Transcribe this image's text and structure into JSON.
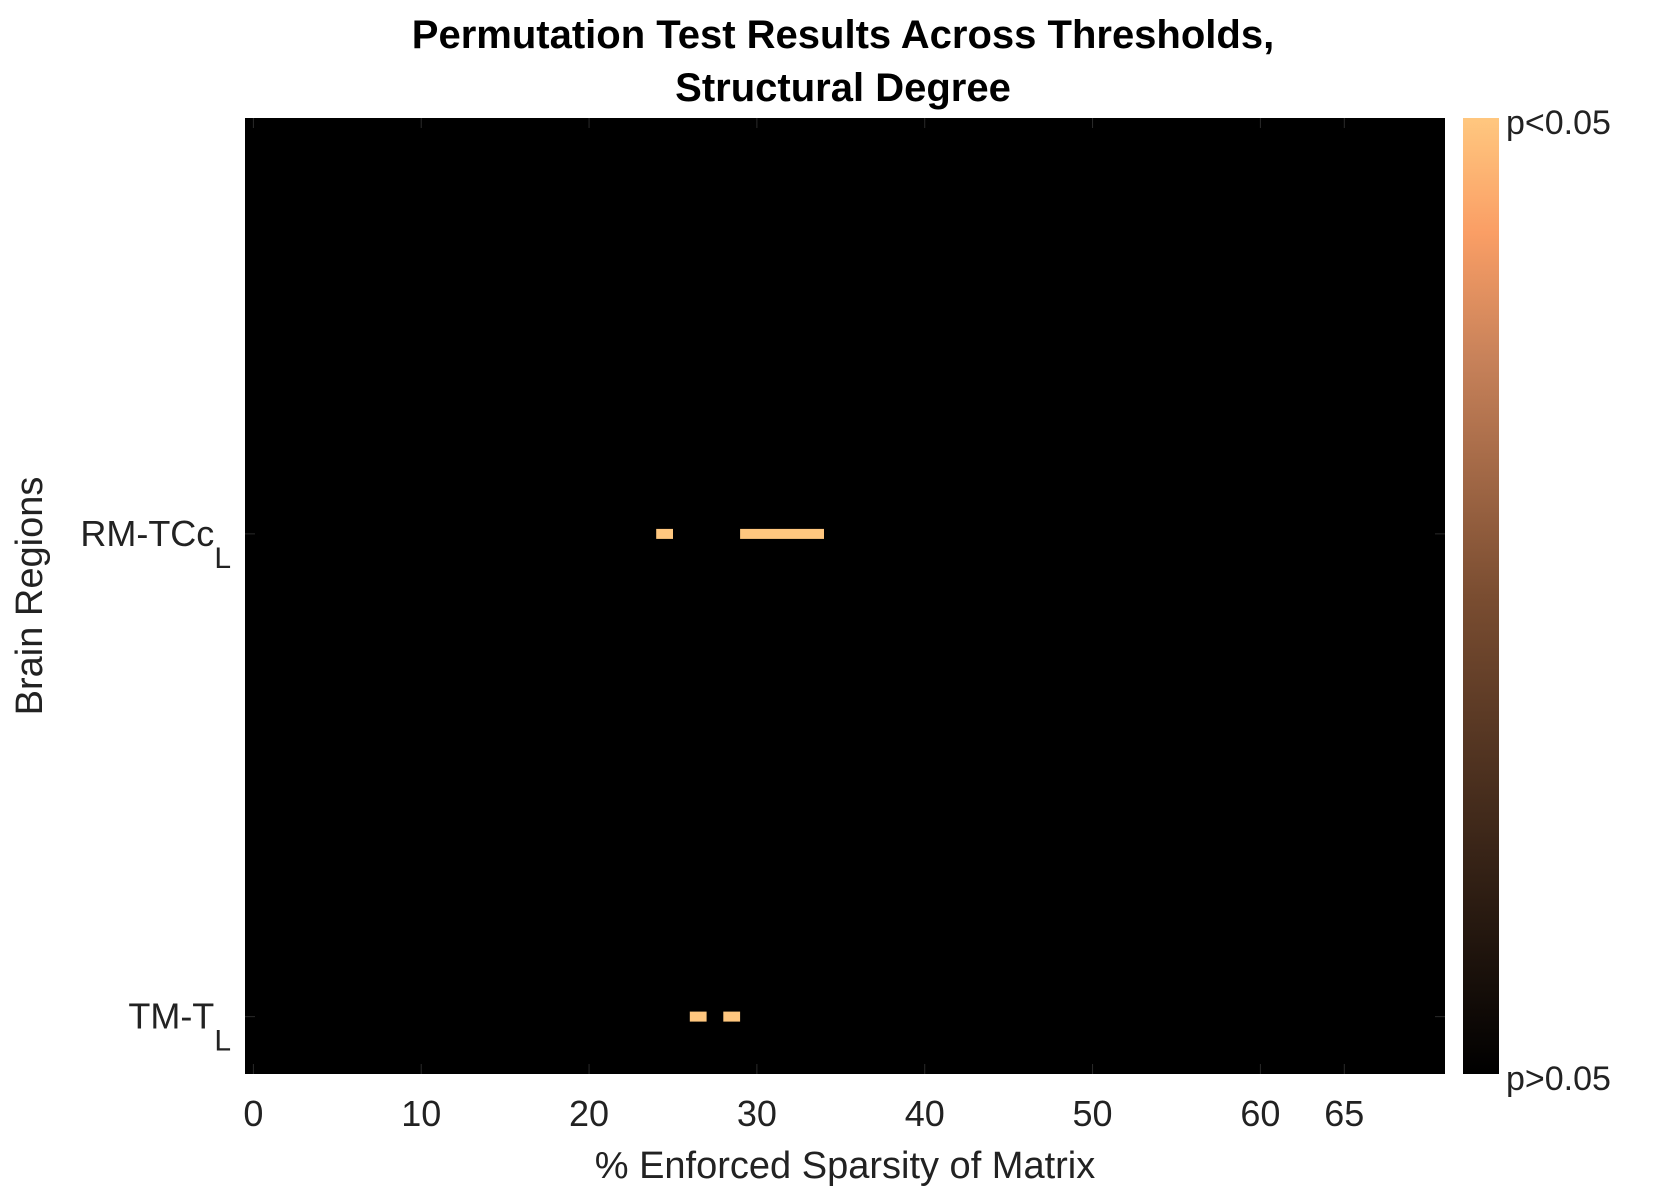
{
  "chart_data": {
    "type": "heatmap",
    "title_lines": [
      "Permutation Test Results Across Thresholds,",
      "Structural Degree"
    ],
    "xlabel": "% Enforced Sparsity of Matrix",
    "ylabel": "Brain Regions",
    "xlim": [
      -0.5,
      71
    ],
    "x_ticks": [
      0,
      10,
      20,
      30,
      40,
      50,
      60,
      65
    ],
    "y_ticks": [
      {
        "base": "RM-TCc",
        "sub": "L",
        "row": 0.435
      },
      {
        "base": "TM-T",
        "sub": "L",
        "row": 0.94
      }
    ],
    "colorbar": {
      "top_label": "p<0.05",
      "bottom_label": "p>0.05",
      "colormap": "copper",
      "high_color": "#FFC77F",
      "low_color": "#000000"
    },
    "background_color": "#000000",
    "significant_cells": [
      {
        "region": "RM-TCc_L",
        "x_start": 24,
        "x_end": 25
      },
      {
        "region": "RM-TCc_L",
        "x_start": 29,
        "x_end": 34
      },
      {
        "region": "TM-T_L",
        "x_start": 26,
        "x_end": 27
      },
      {
        "region": "TM-T_L",
        "x_start": 28,
        "x_end": 29
      }
    ]
  }
}
